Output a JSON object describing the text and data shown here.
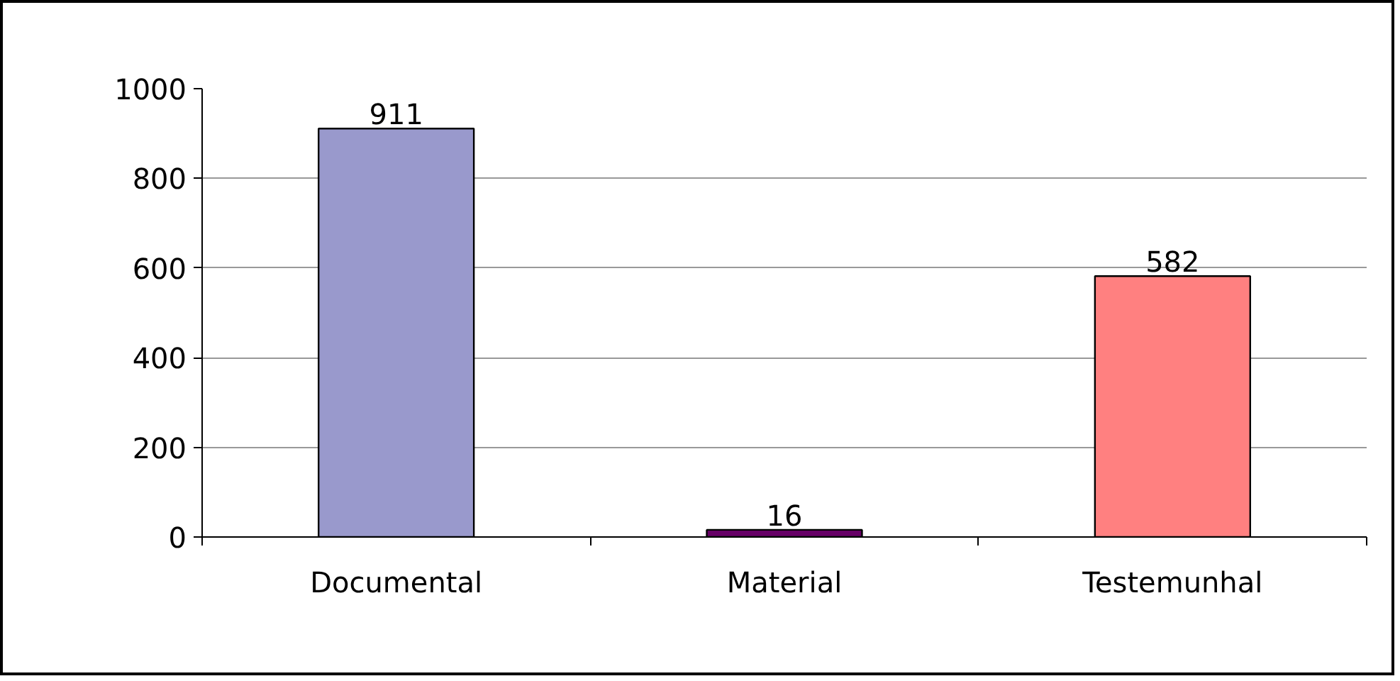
{
  "chart_data": {
    "type": "bar",
    "categories": [
      "Documental",
      "Material",
      "Testemunhal"
    ],
    "values": [
      911,
      16,
      582
    ],
    "colors": [
      "#9999cc",
      "#660066",
      "#ff8080"
    ],
    "ylim": [
      0,
      1000
    ],
    "yticks": [
      0,
      200,
      400,
      600,
      800,
      1000
    ],
    "grid": "y",
    "data_labels": true
  }
}
